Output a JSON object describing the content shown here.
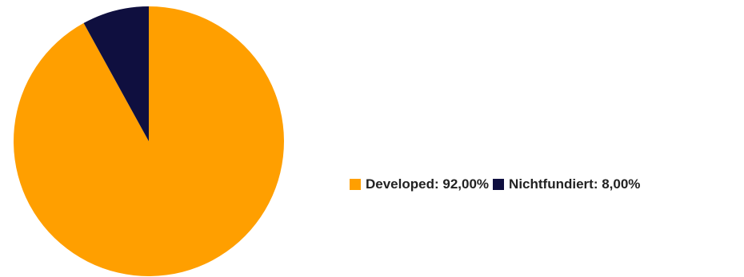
{
  "chart_data": {
    "type": "pie",
    "categories": [
      "Developed",
      "Nichtfundiert"
    ],
    "values": [
      92.0,
      8.0
    ],
    "value_labels": [
      "92,00%",
      "8,00%"
    ],
    "colors": [
      "#ff9f00",
      "#0f0f3f"
    ],
    "start_angle": "12 o'clock",
    "direction": "clockwise",
    "legend_placement": "right"
  }
}
